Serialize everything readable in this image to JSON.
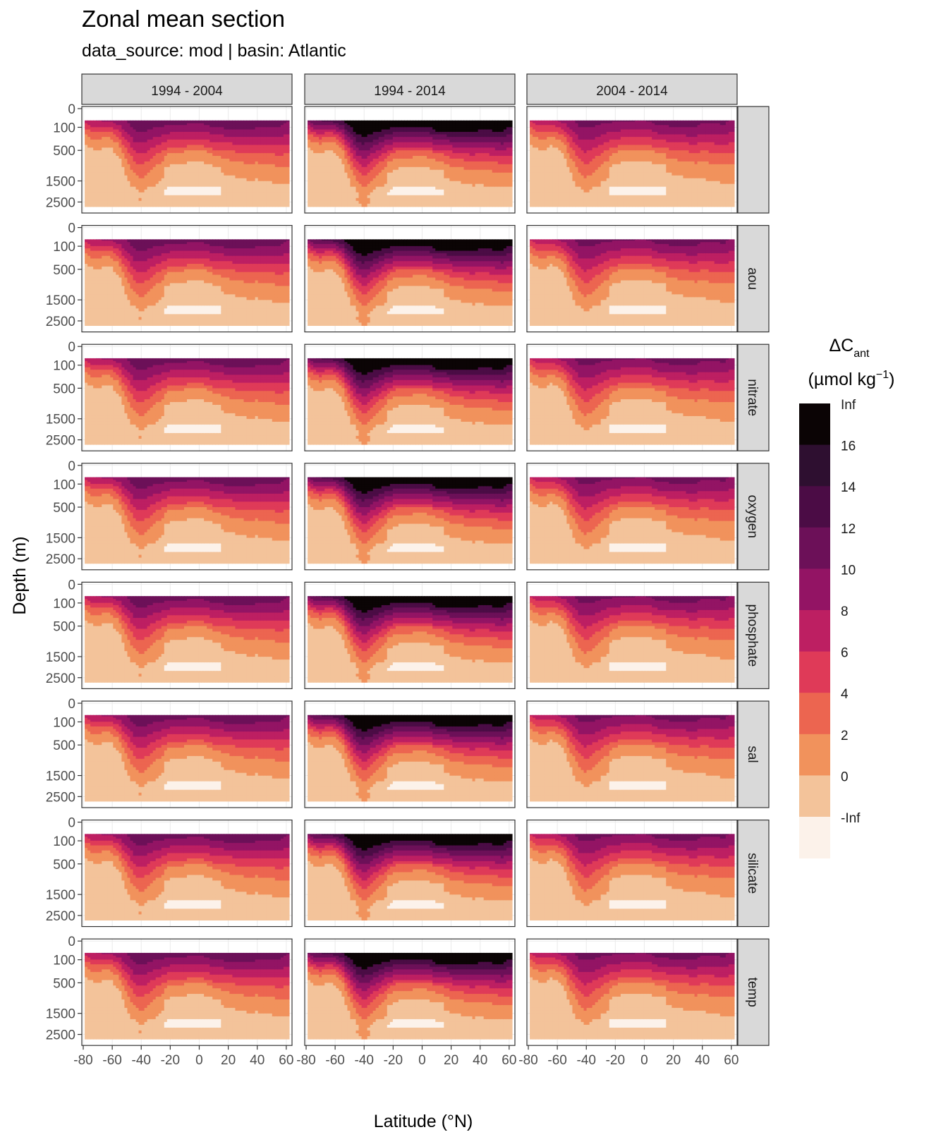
{
  "chart_data": {
    "type": "heatmap",
    "title": "Zonal mean section",
    "subtitle": "data_source:  mod | basin: Atlantic",
    "xlabel": "Latitude (°N)",
    "ylabel": "Depth (m)",
    "x_ticks": [
      -80,
      -60,
      -40,
      -20,
      0,
      20,
      40,
      60
    ],
    "x_tick_labels": [
      "-80",
      "-60",
      "-40",
      "-20",
      "0",
      "20",
      "40",
      "60"
    ],
    "xlim": [
      -80,
      63
    ],
    "y_ticks": [
      0,
      100,
      500,
      1500,
      2500
    ],
    "y_tick_labels": [
      "0",
      "100",
      "500",
      "1500",
      "2500"
    ],
    "ylim": [
      3000,
      0
    ],
    "y_scale": "sqrt",
    "grid": true,
    "columns": [
      "1994 - 2004",
      "1994 - 2014",
      "2004 - 2014"
    ],
    "rows": [
      "",
      "aou",
      "nitrate",
      "oxygen",
      "phosphate",
      "sal",
      "silicate",
      "temp"
    ],
    "legend": {
      "title_main": "ΔC",
      "title_sub": "ant",
      "unit_prefix": "(µmol kg",
      "unit_sup": "−1",
      "unit_suffix": ")",
      "position": "right",
      "bins": [
        {
          "label": "Inf",
          "color": "#0b0405"
        },
        {
          "label": "16",
          "color": "#2e0f30"
        },
        {
          "label": "14",
          "color": "#4b0c45"
        },
        {
          "label": "12",
          "color": "#6c1058"
        },
        {
          "label": "10",
          "color": "#931464"
        },
        {
          "label": "8",
          "color": "#bd1f62"
        },
        {
          "label": "6",
          "color": "#df3a58"
        },
        {
          "label": "4",
          "color": "#ec6550"
        },
        {
          "label": "2",
          "color": "#f1925c"
        },
        {
          "label": "0",
          "color": "#f3c39a"
        },
        {
          "label": "-Inf",
          "color": "#fcf2ea"
        }
      ]
    },
    "section_profile": {
      "lat": [
        -80,
        -75,
        -70,
        -65,
        -60,
        -55,
        -50,
        -45,
        -40,
        -35,
        -30,
        -25,
        -20,
        -15,
        -10,
        -5,
        0,
        5,
        10,
        15,
        20,
        25,
        30,
        35,
        40,
        45,
        50,
        55,
        60,
        63
      ],
      "surface_delta_cant": [
        10,
        11,
        11,
        12,
        12,
        12,
        12,
        13,
        13,
        13,
        13,
        13,
        13,
        13,
        13,
        13,
        13,
        13,
        14,
        14,
        14,
        14,
        14,
        14,
        13,
        13,
        13,
        13,
        12,
        12
      ],
      "base_depth_m": [
        150,
        250,
        300,
        200,
        250,
        400,
        900,
        1400,
        1700,
        1400,
        1100,
        900,
        750,
        700,
        700,
        650,
        650,
        700,
        750,
        750,
        800,
        850,
        900,
        950,
        950,
        1000,
        1050,
        1100,
        1150,
        1200
      ]
    },
    "panel_scale": [
      [
        1.0,
        1.45,
        0.95
      ],
      [
        1.0,
        1.45,
        0.95
      ],
      [
        1.0,
        1.45,
        0.95
      ],
      [
        1.0,
        1.45,
        0.95
      ],
      [
        1.0,
        1.45,
        0.95
      ],
      [
        1.0,
        1.45,
        0.95
      ],
      [
        1.0,
        1.45,
        0.95
      ],
      [
        1.0,
        1.45,
        0.95
      ]
    ]
  }
}
